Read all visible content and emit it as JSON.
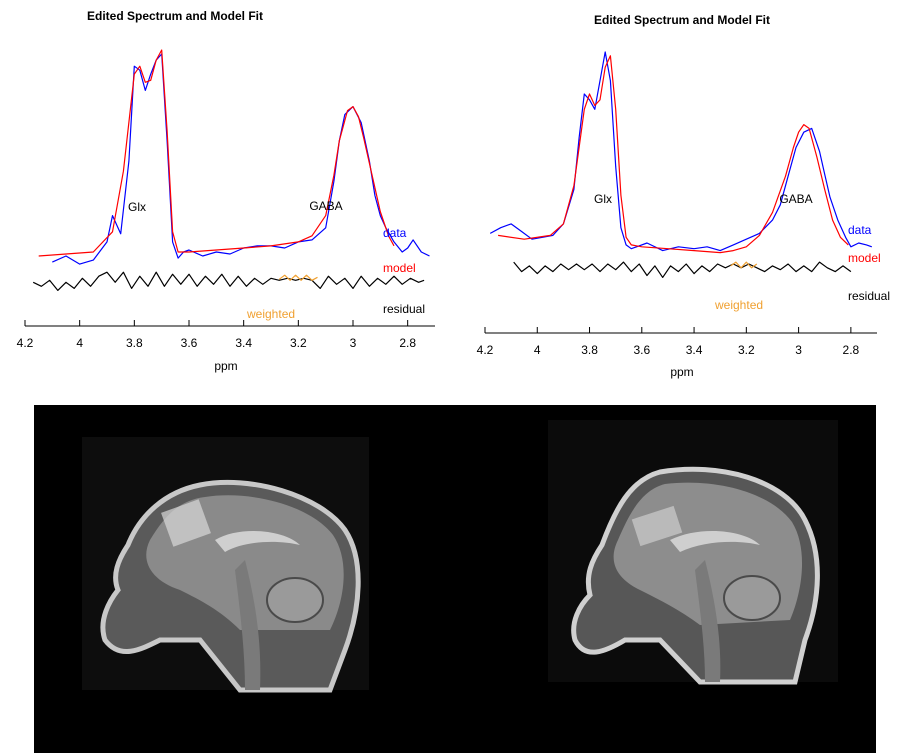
{
  "colors": {
    "data": "#0000ff",
    "model": "#ff0000",
    "residual": "#000000",
    "weighted": "#f0a030",
    "mri_background": "#000000"
  },
  "chart_data": [
    {
      "type": "line",
      "title": "Edited Spectrum and Model Fit",
      "xlabel": "ppm",
      "ylabel": "",
      "x_reversed": true,
      "xlim": [
        4.2,
        2.7
      ],
      "xticks": [
        "4.2",
        "4",
        "3.8",
        "3.6",
        "3.4",
        "3.2",
        "3",
        "2.8"
      ],
      "grid": false,
      "annotations": [
        "Glx",
        "GABA"
      ],
      "series_labels": {
        "data": "data",
        "model": "model",
        "residual": "residual",
        "weighted": "weighted"
      },
      "series": [
        {
          "name": "data",
          "x": [
            4.1,
            4.05,
            4.0,
            3.95,
            3.9,
            3.88,
            3.85,
            3.82,
            3.8,
            3.78,
            3.76,
            3.74,
            3.72,
            3.7,
            3.68,
            3.66,
            3.64,
            3.62,
            3.6,
            3.55,
            3.5,
            3.45,
            3.4,
            3.35,
            3.3,
            3.25,
            3.2,
            3.15,
            3.1,
            3.07,
            3.05,
            3.03,
            3.0,
            2.97,
            2.94,
            2.92,
            2.9,
            2.88,
            2.85,
            2.82,
            2.8,
            2.78,
            2.75,
            2.72
          ],
          "y": [
            -0.05,
            -0.02,
            -0.06,
            -0.04,
            0.05,
            0.18,
            0.09,
            0.45,
            0.92,
            0.9,
            0.8,
            0.88,
            0.95,
            0.98,
            0.55,
            0.05,
            -0.03,
            0.0,
            0.01,
            -0.02,
            0.0,
            -0.01,
            0.02,
            0.03,
            0.03,
            0.02,
            0.05,
            0.06,
            0.12,
            0.35,
            0.55,
            0.68,
            0.72,
            0.64,
            0.45,
            0.28,
            0.18,
            0.12,
            0.05,
            0.0,
            0.02,
            0.06,
            0.0,
            -0.02
          ]
        },
        {
          "name": "model",
          "x": [
            4.15,
            4.05,
            3.95,
            3.88,
            3.84,
            3.8,
            3.78,
            3.76,
            3.74,
            3.72,
            3.7,
            3.68,
            3.66,
            3.64,
            3.6,
            3.5,
            3.4,
            3.3,
            3.2,
            3.15,
            3.1,
            3.07,
            3.05,
            3.02,
            3.0,
            2.98,
            2.96,
            2.93,
            2.9,
            2.87,
            2.85
          ],
          "y": [
            -0.02,
            -0.01,
            0.0,
            0.1,
            0.4,
            0.88,
            0.92,
            0.84,
            0.85,
            0.95,
            1.0,
            0.6,
            0.1,
            0.0,
            0.0,
            0.01,
            0.02,
            0.03,
            0.05,
            0.08,
            0.18,
            0.38,
            0.55,
            0.7,
            0.72,
            0.67,
            0.56,
            0.38,
            0.2,
            0.08,
            0.03
          ]
        },
        {
          "name": "residual",
          "x": [
            4.17,
            4.14,
            4.11,
            4.08,
            4.05,
            4.02,
            3.99,
            3.96,
            3.93,
            3.9,
            3.87,
            3.84,
            3.81,
            3.78,
            3.75,
            3.72,
            3.69,
            3.66,
            3.63,
            3.6,
            3.57,
            3.54,
            3.51,
            3.48,
            3.45,
            3.42,
            3.39,
            3.36,
            3.33,
            3.3,
            3.27,
            3.24,
            3.21,
            3.18,
            3.15,
            3.12,
            3.09,
            3.06,
            3.03,
            3.0,
            2.97,
            2.94,
            2.91,
            2.88,
            2.85,
            2.82,
            2.79,
            2.76,
            2.74
          ],
          "y": [
            -0.15,
            -0.17,
            -0.14,
            -0.19,
            -0.15,
            -0.18,
            -0.13,
            -0.17,
            -0.12,
            -0.1,
            -0.15,
            -0.1,
            -0.18,
            -0.12,
            -0.17,
            -0.1,
            -0.17,
            -0.11,
            -0.16,
            -0.11,
            -0.17,
            -0.12,
            -0.16,
            -0.11,
            -0.17,
            -0.12,
            -0.17,
            -0.13,
            -0.16,
            -0.13,
            -0.14,
            -0.13,
            -0.14,
            -0.13,
            -0.14,
            -0.18,
            -0.12,
            -0.16,
            -0.13,
            -0.18,
            -0.12,
            -0.17,
            -0.13,
            -0.16,
            -0.12,
            -0.16,
            -0.13,
            -0.15,
            -0.14
          ]
        },
        {
          "name": "weighted",
          "x": [
            3.27,
            3.25,
            3.23,
            3.21,
            3.19,
            3.17,
            3.15,
            3.13
          ],
          "y": [
            -0.135,
            -0.115,
            -0.14,
            -0.115,
            -0.14,
            -0.115,
            -0.14,
            -0.125
          ]
        }
      ]
    },
    {
      "type": "line",
      "title": "Edited Spectrum and Model Fit",
      "xlabel": "ppm",
      "ylabel": "",
      "x_reversed": true,
      "xlim": [
        4.2,
        2.7
      ],
      "xticks": [
        "4.2",
        "4",
        "3.8",
        "3.6",
        "3.4",
        "3.2",
        "3",
        "2.8"
      ],
      "grid": false,
      "annotations": [
        "Glx",
        "GABA"
      ],
      "series_labels": {
        "data": "data",
        "model": "model",
        "residual": "residual",
        "weighted": "weighted"
      },
      "series": [
        {
          "name": "data",
          "x": [
            4.18,
            4.14,
            4.1,
            4.06,
            4.02,
            3.98,
            3.94,
            3.9,
            3.86,
            3.84,
            3.82,
            3.8,
            3.78,
            3.76,
            3.74,
            3.72,
            3.7,
            3.68,
            3.66,
            3.64,
            3.62,
            3.58,
            3.52,
            3.46,
            3.4,
            3.35,
            3.3,
            3.25,
            3.2,
            3.15,
            3.1,
            3.07,
            3.04,
            3.01,
            2.98,
            2.95,
            2.92,
            2.9,
            2.88,
            2.85,
            2.82,
            2.8,
            2.77,
            2.74,
            2.72
          ],
          "y": [
            0.05,
            0.08,
            0.1,
            0.06,
            0.02,
            0.03,
            0.04,
            0.1,
            0.28,
            0.55,
            0.78,
            0.75,
            0.7,
            0.85,
            1.0,
            0.85,
            0.4,
            0.08,
            -0.01,
            -0.03,
            -0.02,
            0.0,
            -0.04,
            -0.02,
            -0.03,
            -0.02,
            -0.04,
            -0.01,
            0.02,
            0.05,
            0.12,
            0.2,
            0.35,
            0.5,
            0.58,
            0.6,
            0.48,
            0.36,
            0.24,
            0.12,
            0.03,
            -0.02,
            0.0,
            -0.01,
            -0.02
          ]
        },
        {
          "name": "model",
          "x": [
            4.15,
            4.05,
            3.95,
            3.9,
            3.86,
            3.82,
            3.8,
            3.78,
            3.76,
            3.74,
            3.72,
            3.7,
            3.68,
            3.66,
            3.64,
            3.6,
            3.5,
            3.4,
            3.3,
            3.25,
            3.2,
            3.15,
            3.1,
            3.05,
            3.02,
            3.0,
            2.98,
            2.96,
            2.93,
            2.9,
            2.87,
            2.84,
            2.81
          ],
          "y": [
            0.04,
            0.02,
            0.04,
            0.1,
            0.3,
            0.7,
            0.78,
            0.72,
            0.75,
            0.92,
            0.98,
            0.7,
            0.25,
            0.03,
            -0.01,
            -0.02,
            -0.03,
            -0.04,
            -0.05,
            -0.04,
            -0.02,
            0.04,
            0.16,
            0.35,
            0.5,
            0.58,
            0.62,
            0.6,
            0.45,
            0.28,
            0.12,
            0.03,
            -0.01
          ]
        },
        {
          "name": "residual",
          "x": [
            4.09,
            4.06,
            4.03,
            4.0,
            3.97,
            3.94,
            3.91,
            3.88,
            3.85,
            3.82,
            3.79,
            3.76,
            3.73,
            3.7,
            3.67,
            3.64,
            3.61,
            3.58,
            3.55,
            3.52,
            3.49,
            3.46,
            3.43,
            3.4,
            3.37,
            3.34,
            3.31,
            3.28,
            3.25,
            3.22,
            3.19,
            3.16,
            3.13,
            3.1,
            3.07,
            3.04,
            3.01,
            2.98,
            2.95,
            2.92,
            2.89,
            2.86,
            2.83,
            2.8
          ],
          "y": [
            -0.1,
            -0.15,
            -0.12,
            -0.16,
            -0.12,
            -0.15,
            -0.11,
            -0.14,
            -0.11,
            -0.14,
            -0.11,
            -0.15,
            -0.11,
            -0.14,
            -0.1,
            -0.15,
            -0.11,
            -0.17,
            -0.12,
            -0.18,
            -0.12,
            -0.15,
            -0.11,
            -0.16,
            -0.12,
            -0.15,
            -0.11,
            -0.13,
            -0.11,
            -0.13,
            -0.11,
            -0.13,
            -0.15,
            -0.12,
            -0.14,
            -0.11,
            -0.15,
            -0.12,
            -0.15,
            -0.1,
            -0.13,
            -0.15,
            -0.12,
            -0.15
          ]
        },
        {
          "name": "weighted",
          "x": [
            3.26,
            3.24,
            3.22,
            3.2,
            3.18,
            3.16
          ],
          "y": [
            -0.12,
            -0.1,
            -0.13,
            -0.1,
            -0.13,
            -0.11
          ]
        }
      ]
    }
  ]
}
